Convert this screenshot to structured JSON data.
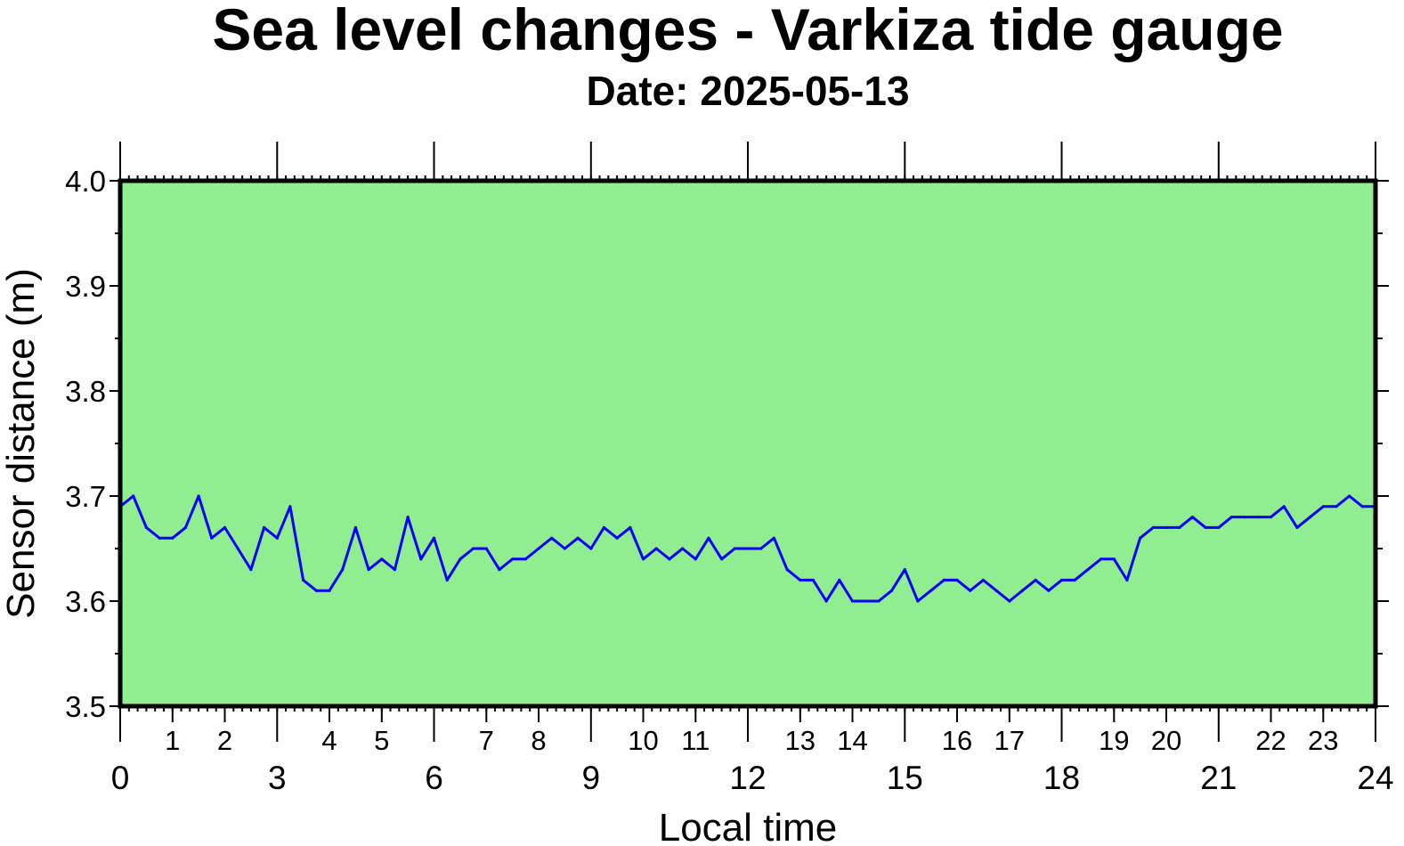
{
  "chart_data": {
    "type": "line",
    "title": "Sea level changes - Varkiza tide gauge",
    "subtitle": "Date: 2025-05-13",
    "xlabel": "Local time",
    "ylabel": "Sensor distance (m)",
    "xlim": [
      0,
      24
    ],
    "ylim": [
      3.5,
      4.0
    ],
    "grid": false,
    "legend": "none",
    "x_major_ticks": [
      "0",
      "3",
      "6",
      "9",
      "12",
      "15",
      "18",
      "21",
      "24"
    ],
    "x_minor_ticks": [
      "1",
      "2",
      "4",
      "5",
      "7",
      "8",
      "10",
      "11",
      "13",
      "14",
      "16",
      "17",
      "19",
      "20",
      "22",
      "23"
    ],
    "y_ticks": [
      "3.5",
      "3.6",
      "3.7",
      "3.8",
      "3.9",
      "4.0"
    ],
    "colors": {
      "plot_background": "#90ee90",
      "line": "#0000ff",
      "frame": "#000000"
    },
    "series": [
      {
        "x": [
          0.0,
          0.25,
          0.5,
          0.75,
          1.0,
          1.25,
          1.5,
          1.75,
          2.0,
          2.25,
          2.5,
          2.75,
          3.0,
          3.25,
          3.5,
          3.75,
          4.0,
          4.25,
          4.5,
          4.75,
          5.0,
          5.25,
          5.5,
          5.75,
          6.0,
          6.25,
          6.5,
          6.75,
          7.0,
          7.25,
          7.5,
          7.75,
          8.0,
          8.25,
          8.5,
          8.75,
          9.0,
          9.25,
          9.5,
          9.75,
          10.0,
          10.25,
          10.5,
          10.75,
          11.0,
          11.25,
          11.5,
          11.75,
          12.0,
          12.25,
          12.5,
          12.75,
          13.0,
          13.25,
          13.5,
          13.75,
          14.0,
          14.25,
          14.5,
          14.75,
          15.0,
          15.25,
          15.5,
          15.75,
          16.0,
          16.25,
          16.5,
          16.75,
          17.0,
          17.25,
          17.5,
          17.75,
          18.0,
          18.25,
          18.5,
          18.75,
          19.0,
          19.25,
          19.5,
          19.75,
          20.0,
          20.25,
          20.5,
          20.75,
          21.0,
          21.25,
          21.5,
          21.75,
          22.0,
          22.25,
          22.5,
          22.75,
          23.0,
          23.25,
          23.5,
          23.75,
          24.0
        ],
        "values": [
          3.69,
          3.7,
          3.67,
          3.66,
          3.66,
          3.67,
          3.7,
          3.66,
          3.67,
          3.65,
          3.63,
          3.67,
          3.66,
          3.69,
          3.62,
          3.61,
          3.61,
          3.63,
          3.67,
          3.63,
          3.64,
          3.63,
          3.68,
          3.64,
          3.66,
          3.62,
          3.64,
          3.65,
          3.65,
          3.63,
          3.64,
          3.64,
          3.65,
          3.66,
          3.65,
          3.66,
          3.65,
          3.67,
          3.66,
          3.67,
          3.64,
          3.65,
          3.64,
          3.65,
          3.64,
          3.66,
          3.64,
          3.65,
          3.65,
          3.65,
          3.66,
          3.63,
          3.62,
          3.62,
          3.6,
          3.62,
          3.6,
          3.6,
          3.6,
          3.61,
          3.63,
          3.6,
          3.61,
          3.62,
          3.62,
          3.61,
          3.62,
          3.61,
          3.6,
          3.61,
          3.62,
          3.61,
          3.62,
          3.62,
          3.63,
          3.64,
          3.64,
          3.62,
          3.66,
          3.67,
          3.67,
          3.67,
          3.68,
          3.67,
          3.67,
          3.68,
          3.68,
          3.68,
          3.68,
          3.69,
          3.67,
          3.68,
          3.69,
          3.69,
          3.7,
          3.69,
          3.69
        ]
      }
    ]
  }
}
